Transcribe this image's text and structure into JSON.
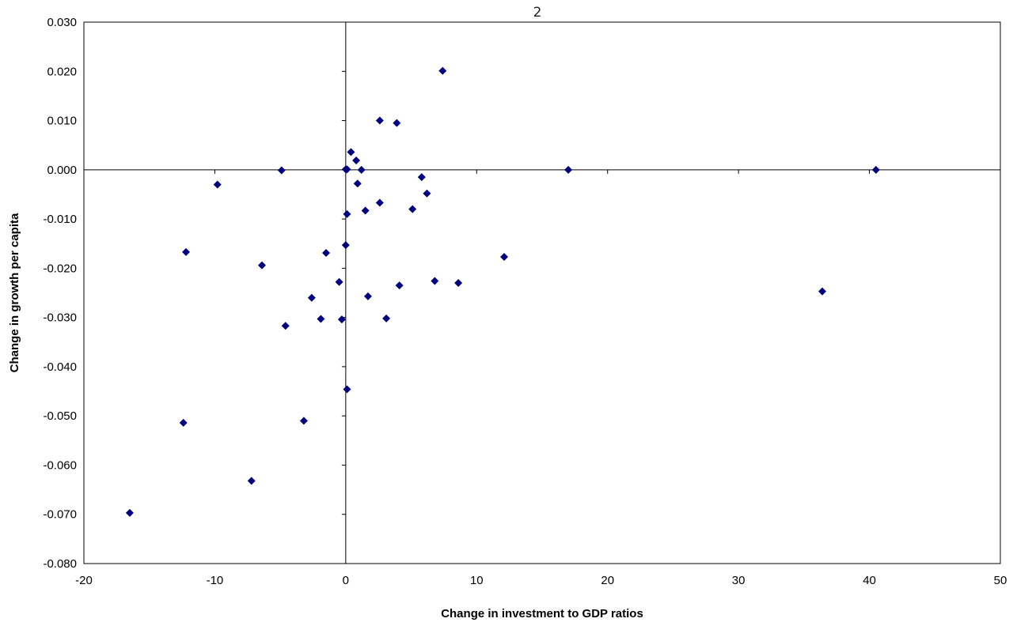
{
  "page_number": "2",
  "chart_data": {
    "type": "scatter",
    "xlabel": "Change in investment to GDP ratios",
    "ylabel": "Change in growth per capita",
    "xlim": [
      -20,
      50
    ],
    "ylim": [
      -0.08,
      0.03
    ],
    "x_ticks": [
      -20,
      -10,
      0,
      10,
      20,
      30,
      40,
      50
    ],
    "x_tick_labels": [
      "-20",
      "-10",
      "0",
      "10",
      "20",
      "30",
      "40",
      "50"
    ],
    "y_ticks": [
      0.03,
      0.02,
      0.01,
      0.0,
      -0.01,
      -0.02,
      -0.03,
      -0.04,
      -0.05,
      -0.06,
      -0.07,
      -0.08
    ],
    "y_tick_labels": [
      "0.030",
      "0.020",
      "0.010",
      "0.000",
      "-0.010",
      "-0.020",
      "-0.030",
      "-0.040",
      "-0.050",
      "-0.060",
      "-0.070",
      "-0.080"
    ],
    "marker_color": "#00007f",
    "marker": "diamond",
    "grid": false,
    "points": [
      {
        "x": 7.4,
        "y": 0.0201
      },
      {
        "x": 2.6,
        "y": 0.01
      },
      {
        "x": 3.9,
        "y": 0.0095
      },
      {
        "x": 0.4,
        "y": 0.0036
      },
      {
        "x": 0.8,
        "y": 0.0019
      },
      {
        "x": 0.0,
        "y": 0.0001
      },
      {
        "x": 0.1,
        "y": 0.0001
      },
      {
        "x": 1.2,
        "y": 0.0
      },
      {
        "x": -4.9,
        "y": -0.0001
      },
      {
        "x": 17.0,
        "y": 0.0
      },
      {
        "x": 40.5,
        "y": 0.0
      },
      {
        "x": 5.8,
        "y": -0.0015
      },
      {
        "x": 0.9,
        "y": -0.0028
      },
      {
        "x": -9.8,
        "y": -0.003
      },
      {
        "x": 6.2,
        "y": -0.0048
      },
      {
        "x": 2.6,
        "y": -0.0067
      },
      {
        "x": 5.1,
        "y": -0.008
      },
      {
        "x": 1.5,
        "y": -0.0083
      },
      {
        "x": 0.1,
        "y": -0.009
      },
      {
        "x": 0.0,
        "y": -0.0153
      },
      {
        "x": -12.2,
        "y": -0.0167
      },
      {
        "x": -1.5,
        "y": -0.0169
      },
      {
        "x": 12.1,
        "y": -0.0177
      },
      {
        "x": -6.4,
        "y": -0.0194
      },
      {
        "x": -0.5,
        "y": -0.0228
      },
      {
        "x": 6.8,
        "y": -0.0226
      },
      {
        "x": 8.6,
        "y": -0.023
      },
      {
        "x": 4.1,
        "y": -0.0235
      },
      {
        "x": 36.4,
        "y": -0.0247
      },
      {
        "x": -2.6,
        "y": -0.026
      },
      {
        "x": 1.7,
        "y": -0.0257
      },
      {
        "x": -1.9,
        "y": -0.0303
      },
      {
        "x": -0.3,
        "y": -0.0304
      },
      {
        "x": 3.1,
        "y": -0.0302
      },
      {
        "x": -4.6,
        "y": -0.0317
      },
      {
        "x": 0.1,
        "y": -0.0446
      },
      {
        "x": -3.2,
        "y": -0.051
      },
      {
        "x": -12.4,
        "y": -0.0514
      },
      {
        "x": -7.2,
        "y": -0.0632
      },
      {
        "x": -16.5,
        "y": -0.0697
      }
    ]
  }
}
